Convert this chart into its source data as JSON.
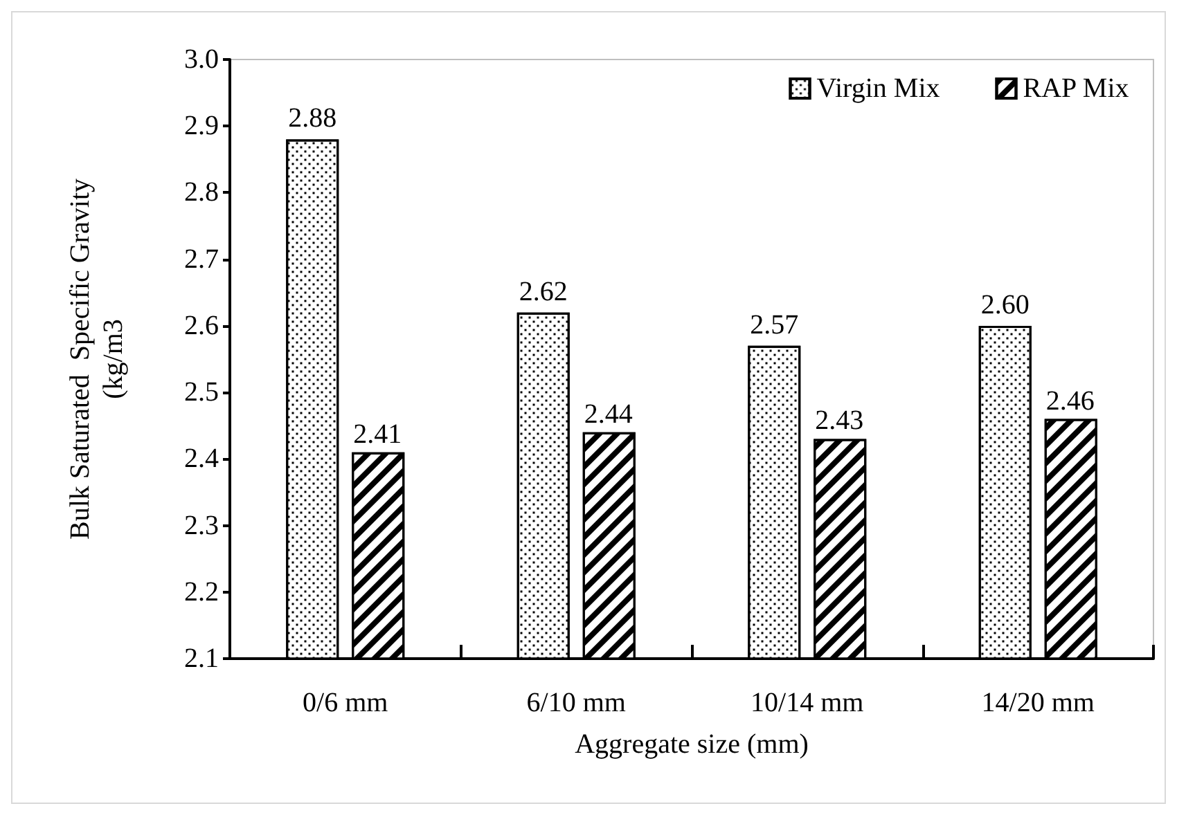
{
  "chart_data": {
    "type": "bar",
    "xlabel": "Aggregate size (mm)",
    "ylabel": "Bulk Saturated  Specific Gravity\n(kg/m3",
    "categories": [
      "0/6 mm",
      "6/10 mm",
      "10/14 mm",
      "14/20 mm"
    ],
    "series": [
      {
        "name": "Virgin Mix",
        "color": "#000000",
        "values": [
          2.88,
          2.62,
          2.57,
          2.6
        ]
      },
      {
        "name": "RAP Mix",
        "color": "#000000",
        "values": [
          2.41,
          2.44,
          2.43,
          2.46
        ]
      }
    ],
    "value_labels": [
      [
        "2.88",
        "2.62",
        "2.57",
        "2.60"
      ],
      [
        "2.41",
        "2.44",
        "2.43",
        "2.46"
      ]
    ],
    "ylim": [
      2.1,
      3.0
    ],
    "yticks": [
      2.1,
      2.2,
      2.3,
      2.4,
      2.5,
      2.6,
      2.7,
      2.8,
      2.9,
      {
        "value": 3.0,
        "label": "3.0"
      }
    ],
    "grid": false,
    "legend": "top right"
  }
}
